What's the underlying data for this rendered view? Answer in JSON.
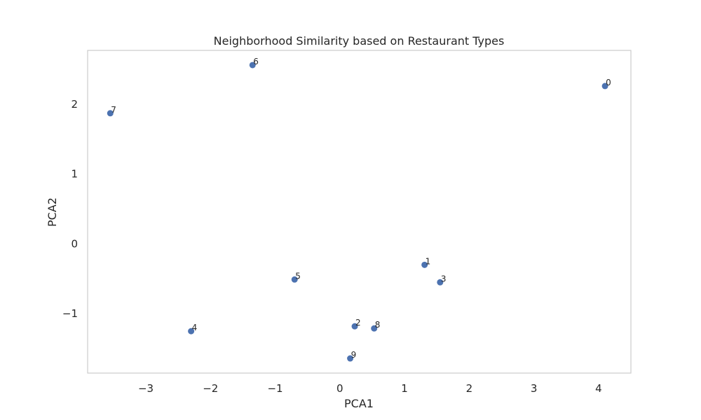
{
  "chart_data": {
    "type": "scatter",
    "title": "Neighborhood Similarity based on Restaurant Types",
    "xlabel": "PCA1",
    "ylabel": "PCA2",
    "xlim": [
      -3.9,
      4.5
    ],
    "ylim": [
      -1.85,
      2.77
    ],
    "xticks": [
      -3,
      -2,
      -1,
      0,
      1,
      2,
      3,
      4
    ],
    "yticks": [
      -1,
      0,
      1,
      2
    ],
    "xtick_labels": [
      "−3",
      "−2",
      "−1",
      "0",
      "1",
      "2",
      "3",
      "4"
    ],
    "ytick_labels": [
      "−1",
      "0",
      "1",
      "2"
    ],
    "grid": false,
    "marker_color": "#4c72b0",
    "points": [
      {
        "label": "0",
        "x": 4.1,
        "y": 2.26
      },
      {
        "label": "1",
        "x": 1.31,
        "y": -0.3
      },
      {
        "label": "2",
        "x": 0.23,
        "y": -1.18
      },
      {
        "label": "3",
        "x": 1.55,
        "y": -0.55
      },
      {
        "label": "4",
        "x": -2.3,
        "y": -1.25
      },
      {
        "label": "5",
        "x": -0.7,
        "y": -0.51
      },
      {
        "label": "6",
        "x": -1.35,
        "y": 2.56
      },
      {
        "label": "7",
        "x": -3.55,
        "y": 1.87
      },
      {
        "label": "8",
        "x": 0.53,
        "y": -1.21
      },
      {
        "label": "9",
        "x": 0.16,
        "y": -1.64
      }
    ]
  }
}
